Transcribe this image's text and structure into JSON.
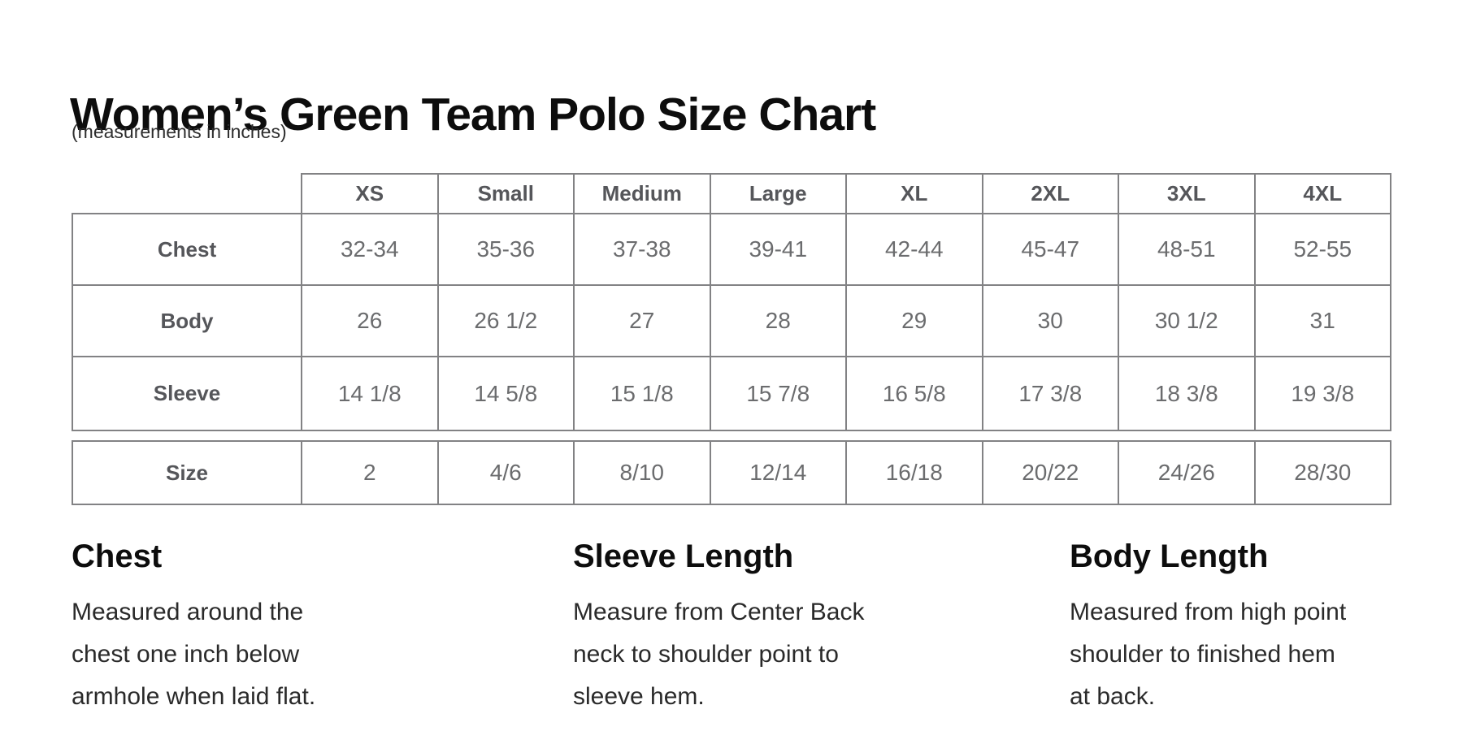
{
  "page": {
    "title": "Women’s Green Team Polo Size Chart",
    "subtitle": "(measurements in inches)"
  },
  "colors": {
    "table_border": "#828284",
    "header_text": "#55565a",
    "value_text": "#6b6c6e",
    "title_text": "#0d0d0d",
    "note_text": "#2a2a2a"
  },
  "size_chart": {
    "column_headers": [
      "XS",
      "Small",
      "Medium",
      "Large",
      "XL",
      "2XL",
      "3XL",
      "4XL"
    ],
    "rows": [
      {
        "label": "Chest",
        "values": [
          "32-34",
          "35-36",
          "37-38",
          "39-41",
          "42-44",
          "45-47",
          "48-51",
          "52-55"
        ]
      },
      {
        "label": "Body",
        "values": [
          "26",
          "26 1/2",
          "27",
          "28",
          "29",
          "30",
          "30 1/2",
          "31"
        ]
      },
      {
        "label": "Sleeve",
        "values": [
          "14 1/8",
          "14 5/8",
          "15 1/8",
          "15 7/8",
          "16 5/8",
          "17 3/8",
          "18 3/8",
          "19 3/8"
        ]
      }
    ],
    "size_row": {
      "label": "Size",
      "values": [
        "2",
        "4/6",
        "8/10",
        "12/14",
        "16/18",
        "20/22",
        "24/26",
        "28/30"
      ]
    }
  },
  "measurement_notes": [
    {
      "heading": "Chest",
      "description": "Measured around the\nchest one inch below\narmhole when laid flat."
    },
    {
      "heading": "Sleeve Length",
      "description": "Measure from Center Back\nneck to shoulder point to\nsleeve hem."
    },
    {
      "heading": "Body Length",
      "description": "Measured from high point\nshoulder to finished hem\nat back."
    }
  ]
}
